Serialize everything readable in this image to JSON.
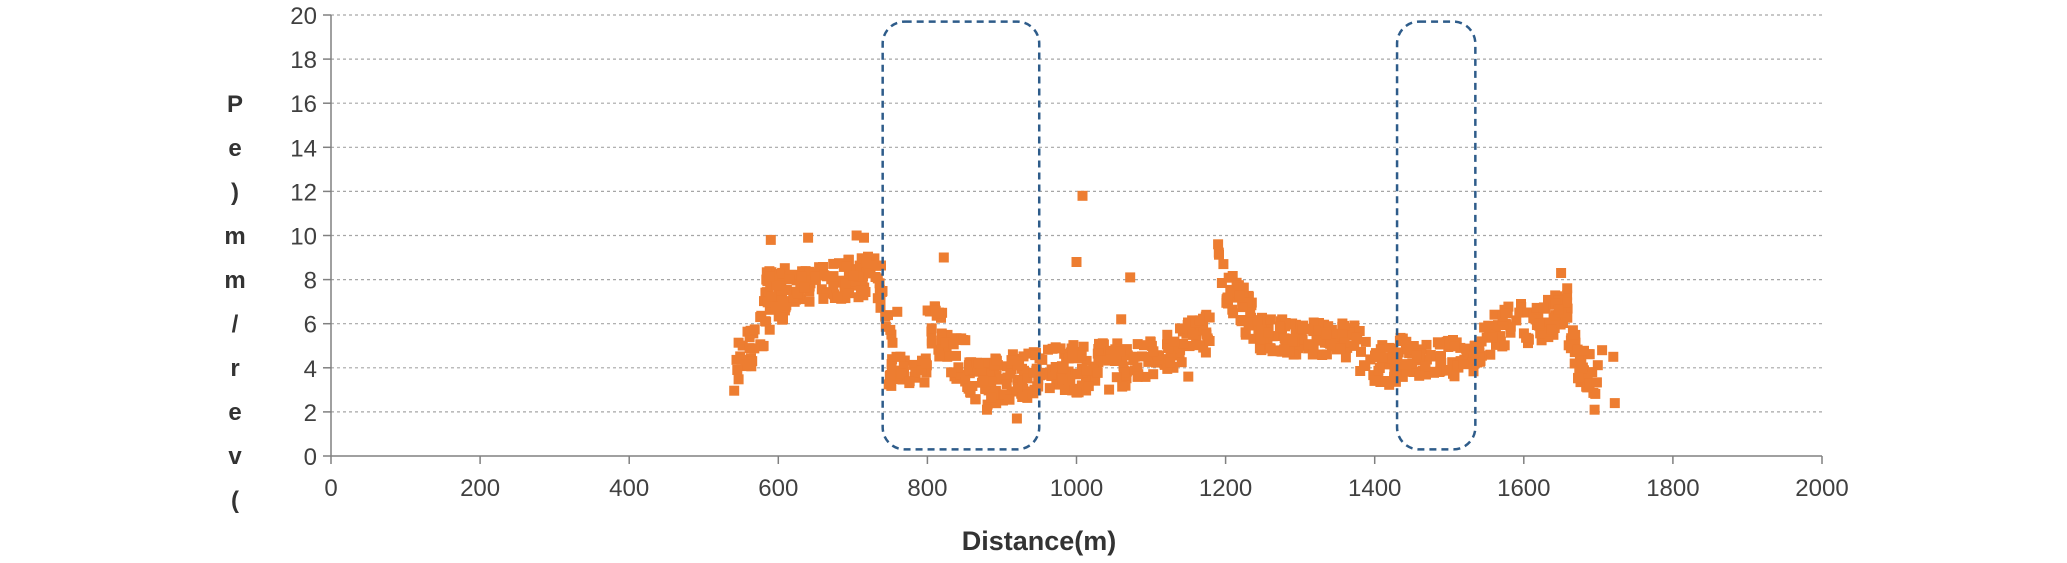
{
  "chart_data": {
    "type": "scatter",
    "xlabel": "Distance(m)",
    "ylabel": "Pe)mm/rev(",
    "xlim": [
      0,
      2000
    ],
    "ylim": [
      0,
      20
    ],
    "xticks": [
      0,
      200,
      400,
      600,
      800,
      1000,
      1200,
      1400,
      1600,
      1800,
      2000
    ],
    "yticks": [
      0,
      2,
      4,
      6,
      8,
      10,
      12,
      14,
      16,
      18,
      20
    ],
    "grid": "horizontal dashed",
    "marker": "square",
    "colors": {
      "points": "#ED7D31",
      "highlight": "#2E5C8A",
      "grid": "#A6A6A6",
      "axis": "#808080"
    },
    "highlight_regions": [
      {
        "x": [
          740,
          950
        ],
        "y": [
          0.3,
          19.7
        ]
      },
      {
        "x": [
          1430,
          1535
        ],
        "y": [
          0.3,
          19.7
        ]
      }
    ],
    "segments": [
      {
        "x": [
          540,
          610
        ],
        "y": [
          4.0,
          7.5
        ],
        "spread": 1.2,
        "n": 45
      },
      {
        "x": [
          580,
          730
        ],
        "y": [
          7.5,
          8.2
        ],
        "spread": 0.9,
        "n": 140
      },
      {
        "x": [
          730,
          760
        ],
        "y": [
          8.0,
          5.5
        ],
        "spread": 1.4,
        "n": 18
      },
      {
        "x": [
          748,
          800
        ],
        "y": [
          3.8,
          4.0
        ],
        "spread": 0.7,
        "n": 38
      },
      {
        "x": [
          800,
          860
        ],
        "y": [
          6.0,
          3.6
        ],
        "spread": 1.4,
        "n": 45
      },
      {
        "x": [
          860,
          950
        ],
        "y": [
          3.3,
          3.8
        ],
        "spread": 1.1,
        "n": 85
      },
      {
        "x": [
          950,
          1080
        ],
        "y": [
          3.8,
          4.2
        ],
        "spread": 1.1,
        "n": 100
      },
      {
        "x": [
          1080,
          1180
        ],
        "y": [
          4.2,
          5.6
        ],
        "spread": 0.9,
        "n": 70
      },
      {
        "x": [
          1190,
          1240
        ],
        "y": [
          8.5,
          5.8
        ],
        "spread": 1.0,
        "n": 40
      },
      {
        "x": [
          1240,
          1380
        ],
        "y": [
          5.5,
          5.2
        ],
        "spread": 0.8,
        "n": 120
      },
      {
        "x": [
          1380,
          1430
        ],
        "y": [
          4.5,
          4.0
        ],
        "spread": 0.9,
        "n": 35
      },
      {
        "x": [
          1430,
          1540
        ],
        "y": [
          4.5,
          4.3
        ],
        "spread": 0.9,
        "n": 80
      },
      {
        "x": [
          1540,
          1600
        ],
        "y": [
          5.0,
          6.5
        ],
        "spread": 0.9,
        "n": 40
      },
      {
        "x": [
          1600,
          1660
        ],
        "y": [
          5.5,
          6.8
        ],
        "spread": 0.9,
        "n": 55
      },
      {
        "x": [
          1660,
          1700
        ],
        "y": [
          5.0,
          3.3
        ],
        "spread": 1.0,
        "n": 35
      }
    ],
    "points": [
      [
        590,
        9.8
      ],
      [
        640,
        9.9
      ],
      [
        705,
        10.0
      ],
      [
        715,
        9.9
      ],
      [
        822,
        9.0
      ],
      [
        1000,
        8.8
      ],
      [
        1008,
        11.8
      ],
      [
        1072,
        8.1
      ],
      [
        1190,
        9.6
      ],
      [
        1650,
        8.3
      ],
      [
        545,
        3.9
      ],
      [
        880,
        2.1
      ],
      [
        920,
        1.7
      ],
      [
        1695,
        2.1
      ],
      [
        1722,
        2.4
      ],
      [
        1720,
        4.5
      ],
      [
        1705,
        4.8
      ],
      [
        1150,
        3.6
      ],
      [
        1060,
        6.2
      ]
    ]
  }
}
